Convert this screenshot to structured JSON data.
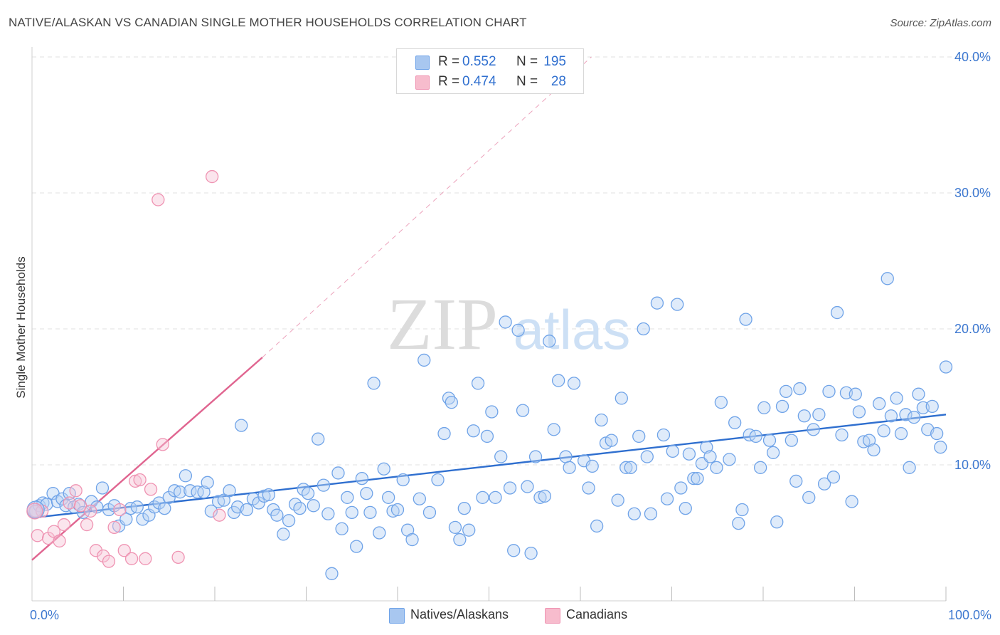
{
  "title": "NATIVE/ALASKAN VS CANADIAN SINGLE MOTHER HOUSEHOLDS CORRELATION CHART",
  "source": "Source: ZipAtlas.com",
  "watermark": {
    "zip": "ZIP",
    "atlas": "atlas"
  },
  "colors": {
    "blue": "#6fa3e8",
    "blue_fill": "#b9d3f5",
    "blue_line": "#2f6fcf",
    "pink": "#ef93b2",
    "pink_fill": "#f7c6d6",
    "pink_line": "#e06590",
    "grid": "#e2e2e2",
    "axis_text": "#3d78d0"
  },
  "legend_top": [
    {
      "r_label": "R =",
      "r_value": "0.552",
      "n_label": "N =",
      "n_value": "195",
      "color": "#a8c7f0"
    },
    {
      "r_label": "R =",
      "r_value": "0.474",
      "n_label": "N =",
      "n_value": "28",
      "color": "#f7bccd"
    }
  ],
  "legend_bottom": [
    {
      "label": "Natives/Alaskans",
      "color": "#a8c7f0"
    },
    {
      "label": "Canadians",
      "color": "#f7bccd"
    }
  ],
  "chart_data": {
    "type": "scatter",
    "title": "NATIVE/ALASKAN VS CANADIAN SINGLE MOTHER HOUSEHOLDS CORRELATION CHART",
    "xlabel": "",
    "ylabel": "Single Mother Households",
    "xlim": [
      0,
      100
    ],
    "ylim": [
      0,
      40
    ],
    "x_tick_labels": [
      "0.0%",
      "100.0%"
    ],
    "y_ticks": [
      10,
      20,
      30,
      40
    ],
    "y_tick_labels": [
      "10.0%",
      "20.0%",
      "30.0%",
      "40.0%"
    ],
    "grid": true,
    "legend_position": "top-center",
    "series": [
      {
        "name": "Natives/Alaskans",
        "r": 0.552,
        "n": 195,
        "trend": {
          "x": [
            0,
            100
          ],
          "y": [
            6.1,
            13.7
          ]
        },
        "points": [
          [
            0.4,
            6.6
          ],
          [
            0.8,
            7.0
          ],
          [
            1.2,
            7.2
          ],
          [
            1.6,
            7.1
          ],
          [
            2.3,
            7.9
          ],
          [
            2.8,
            7.3
          ],
          [
            3.3,
            7.5
          ],
          [
            3.7,
            7.0
          ],
          [
            4.1,
            7.9
          ],
          [
            4.6,
            6.9
          ],
          [
            5.1,
            7.1
          ],
          [
            5.6,
            6.5
          ],
          [
            6.5,
            7.3
          ],
          [
            7.1,
            6.9
          ],
          [
            7.7,
            8.3
          ],
          [
            8.4,
            6.7
          ],
          [
            9.0,
            7.0
          ],
          [
            9.5,
            5.5
          ],
          [
            10.3,
            6.0
          ],
          [
            10.8,
            6.8
          ],
          [
            11.5,
            6.9
          ],
          [
            12.1,
            6.0
          ],
          [
            12.8,
            6.3
          ],
          [
            13.4,
            6.9
          ],
          [
            13.9,
            7.2
          ],
          [
            14.5,
            6.8
          ],
          [
            15.0,
            7.6
          ],
          [
            15.6,
            8.1
          ],
          [
            16.2,
            8.0
          ],
          [
            16.8,
            9.2
          ],
          [
            17.3,
            8.1
          ],
          [
            18.1,
            8.0
          ],
          [
            18.8,
            8.0
          ],
          [
            19.2,
            8.7
          ],
          [
            19.6,
            6.6
          ],
          [
            20.4,
            7.3
          ],
          [
            21.0,
            7.4
          ],
          [
            21.6,
            8.1
          ],
          [
            22.1,
            6.5
          ],
          [
            22.5,
            6.9
          ],
          [
            22.9,
            12.9
          ],
          [
            23.5,
            6.7
          ],
          [
            24.2,
            7.5
          ],
          [
            24.8,
            7.2
          ],
          [
            25.4,
            7.7
          ],
          [
            25.9,
            7.8
          ],
          [
            26.4,
            6.7
          ],
          [
            26.8,
            6.3
          ],
          [
            27.5,
            4.9
          ],
          [
            28.1,
            5.9
          ],
          [
            28.8,
            7.1
          ],
          [
            29.3,
            6.8
          ],
          [
            29.7,
            8.2
          ],
          [
            30.2,
            7.9
          ],
          [
            30.8,
            7.0
          ],
          [
            31.3,
            11.9
          ],
          [
            31.9,
            8.5
          ],
          [
            32.4,
            6.4
          ],
          [
            32.8,
            2.0
          ],
          [
            33.5,
            9.4
          ],
          [
            33.9,
            5.3
          ],
          [
            34.5,
            7.6
          ],
          [
            35.0,
            6.5
          ],
          [
            35.5,
            4.0
          ],
          [
            36.1,
            9.0
          ],
          [
            36.6,
            7.9
          ],
          [
            37.0,
            6.5
          ],
          [
            37.4,
            16.0
          ],
          [
            38.0,
            5.0
          ],
          [
            38.5,
            9.7
          ],
          [
            39.0,
            7.6
          ],
          [
            39.5,
            6.6
          ],
          [
            40.0,
            6.7
          ],
          [
            40.6,
            8.9
          ],
          [
            41.1,
            5.2
          ],
          [
            41.6,
            4.5
          ],
          [
            42.4,
            7.5
          ],
          [
            42.9,
            17.7
          ],
          [
            43.5,
            6.5
          ],
          [
            44.4,
            8.9
          ],
          [
            45.1,
            12.3
          ],
          [
            45.6,
            14.9
          ],
          [
            45.9,
            14.6
          ],
          [
            46.3,
            5.4
          ],
          [
            46.8,
            4.5
          ],
          [
            47.3,
            6.8
          ],
          [
            47.8,
            5.2
          ],
          [
            48.3,
            12.5
          ],
          [
            48.8,
            16.0
          ],
          [
            49.3,
            7.6
          ],
          [
            49.8,
            12.1
          ],
          [
            50.3,
            13.9
          ],
          [
            50.7,
            7.6
          ],
          [
            51.3,
            10.6
          ],
          [
            51.8,
            20.5
          ],
          [
            52.3,
            8.3
          ],
          [
            52.7,
            3.7
          ],
          [
            53.2,
            19.9
          ],
          [
            53.7,
            14.0
          ],
          [
            54.2,
            8.4
          ],
          [
            54.6,
            3.5
          ],
          [
            55.1,
            10.6
          ],
          [
            55.6,
            7.6
          ],
          [
            56.1,
            7.7
          ],
          [
            56.6,
            19.1
          ],
          [
            57.1,
            12.6
          ],
          [
            57.6,
            16.2
          ],
          [
            58.4,
            10.6
          ],
          [
            58.8,
            9.8
          ],
          [
            59.3,
            16.0
          ],
          [
            60.4,
            10.3
          ],
          [
            60.9,
            8.3
          ],
          [
            61.3,
            9.9
          ],
          [
            61.8,
            5.5
          ],
          [
            62.3,
            13.3
          ],
          [
            62.8,
            11.6
          ],
          [
            63.4,
            11.8
          ],
          [
            64.1,
            7.4
          ],
          [
            64.5,
            14.9
          ],
          [
            65.0,
            9.8
          ],
          [
            65.5,
            9.8
          ],
          [
            65.9,
            6.4
          ],
          [
            66.4,
            12.1
          ],
          [
            66.9,
            20.0
          ],
          [
            67.3,
            10.6
          ],
          [
            67.7,
            6.4
          ],
          [
            68.4,
            21.9
          ],
          [
            69.1,
            12.2
          ],
          [
            69.5,
            7.5
          ],
          [
            70.1,
            11.0
          ],
          [
            70.6,
            21.8
          ],
          [
            71.0,
            8.3
          ],
          [
            71.5,
            6.8
          ],
          [
            71.9,
            10.8
          ],
          [
            72.4,
            9.0
          ],
          [
            72.8,
            9.0
          ],
          [
            73.3,
            10.1
          ],
          [
            73.8,
            11.3
          ],
          [
            74.2,
            10.6
          ],
          [
            74.9,
            9.8
          ],
          [
            75.4,
            14.6
          ],
          [
            76.3,
            10.4
          ],
          [
            76.9,
            13.1
          ],
          [
            77.3,
            5.7
          ],
          [
            77.7,
            6.7
          ],
          [
            78.1,
            20.7
          ],
          [
            78.5,
            12.2
          ],
          [
            79.2,
            12.1
          ],
          [
            79.7,
            9.8
          ],
          [
            80.1,
            14.2
          ],
          [
            80.7,
            11.8
          ],
          [
            81.1,
            10.9
          ],
          [
            81.5,
            5.8
          ],
          [
            82.1,
            14.3
          ],
          [
            82.5,
            15.4
          ],
          [
            83.1,
            11.8
          ],
          [
            83.6,
            8.8
          ],
          [
            84.0,
            15.6
          ],
          [
            84.5,
            13.6
          ],
          [
            85.0,
            7.6
          ],
          [
            85.5,
            12.6
          ],
          [
            86.1,
            13.7
          ],
          [
            86.7,
            8.6
          ],
          [
            87.2,
            15.4
          ],
          [
            87.7,
            9.1
          ],
          [
            88.1,
            21.2
          ],
          [
            88.6,
            12.2
          ],
          [
            89.1,
            15.3
          ],
          [
            89.7,
            7.3
          ],
          [
            90.1,
            15.2
          ],
          [
            90.5,
            13.9
          ],
          [
            91.0,
            11.7
          ],
          [
            91.6,
            11.8
          ],
          [
            92.1,
            11.1
          ],
          [
            92.7,
            14.5
          ],
          [
            93.2,
            12.5
          ],
          [
            93.6,
            23.7
          ],
          [
            94.0,
            13.6
          ],
          [
            94.6,
            14.9
          ],
          [
            95.1,
            12.3
          ],
          [
            95.6,
            13.7
          ],
          [
            96.0,
            9.8
          ],
          [
            96.5,
            13.5
          ],
          [
            97.0,
            15.2
          ],
          [
            97.5,
            14.2
          ],
          [
            98.0,
            12.6
          ],
          [
            98.5,
            14.3
          ],
          [
            99.0,
            12.3
          ],
          [
            99.4,
            11.3
          ],
          [
            100.0,
            17.2
          ]
        ]
      },
      {
        "name": "Canadians",
        "r": 0.474,
        "n": 28,
        "trend": {
          "x": [
            0,
            25.2
          ],
          "y": [
            3.0,
            17.9
          ],
          "extended": {
            "x": [
              25.2,
              61.2
            ],
            "y": [
              17.9,
              40.0
            ]
          }
        },
        "points": [
          [
            0.3,
            6.6
          ],
          [
            0.6,
            4.8
          ],
          [
            1.1,
            6.6
          ],
          [
            1.8,
            4.6
          ],
          [
            2.4,
            5.1
          ],
          [
            3.0,
            4.4
          ],
          [
            3.5,
            5.6
          ],
          [
            4.1,
            7.2
          ],
          [
            4.8,
            8.1
          ],
          [
            5.3,
            7.0
          ],
          [
            6.0,
            5.6
          ],
          [
            6.4,
            6.6
          ],
          [
            7.0,
            3.7
          ],
          [
            7.8,
            3.3
          ],
          [
            8.4,
            2.9
          ],
          [
            9.0,
            5.4
          ],
          [
            9.6,
            6.7
          ],
          [
            10.1,
            3.7
          ],
          [
            10.9,
            3.1
          ],
          [
            11.3,
            8.8
          ],
          [
            11.8,
            8.9
          ],
          [
            12.4,
            3.1
          ],
          [
            13.0,
            8.2
          ],
          [
            13.8,
            29.5
          ],
          [
            14.3,
            11.5
          ],
          [
            16.0,
            3.2
          ],
          [
            19.7,
            31.2
          ],
          [
            20.5,
            6.3
          ]
        ]
      }
    ]
  }
}
